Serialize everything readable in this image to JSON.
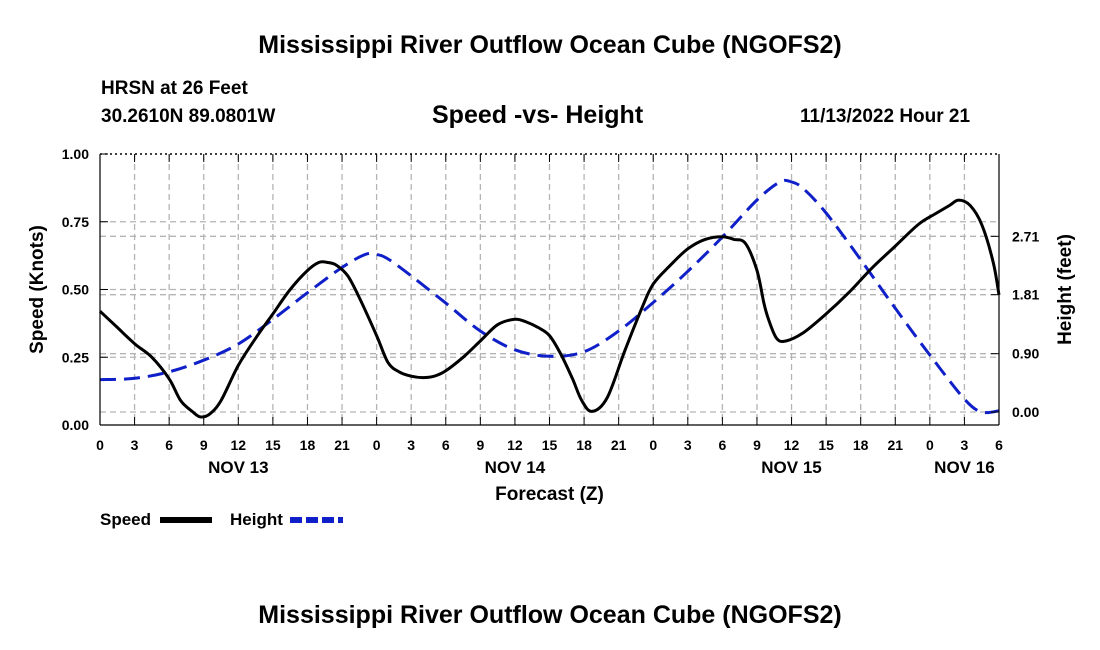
{
  "page": {
    "title_top": "Mississippi River Outflow Ocean Cube (NGOFS2)",
    "title_bottom": "Mississippi River Outflow Ocean Cube (NGOFS2)",
    "station": "HRSN at 26 Feet",
    "location": "30.2610N  89.0801W",
    "plot_title": "Speed -vs- Height",
    "date_label": "11/13/2022 Hour 21"
  },
  "chart_data": {
    "type": "line",
    "xlabel": "Forecast (Z)",
    "ylabel": "Speed (Knots)",
    "y2label": "Height (feet)",
    "xlim": [
      0,
      78
    ],
    "ylim": [
      0,
      1.0
    ],
    "y2lim": [
      -0.2,
      3.98
    ],
    "grid": true,
    "x_ticks": [
      0,
      3,
      6,
      9,
      12,
      15,
      18,
      21,
      24,
      27,
      30,
      33,
      36,
      39,
      42,
      45,
      48,
      51,
      54,
      57,
      60,
      63,
      66,
      69,
      72,
      75,
      78
    ],
    "x_tick_labels": [
      "0",
      "3",
      "6",
      "9",
      "12",
      "15",
      "18",
      "21",
      "0",
      "3",
      "6",
      "9",
      "12",
      "15",
      "18",
      "21",
      "0",
      "3",
      "6",
      "9",
      "12",
      "15",
      "18",
      "21",
      "0",
      "3",
      "6"
    ],
    "day_labels": [
      {
        "x": 12,
        "label": "NOV 13"
      },
      {
        "x": 36,
        "label": "NOV 14"
      },
      {
        "x": 60,
        "label": "NOV 15"
      },
      {
        "x": 75,
        "label": "NOV 16"
      }
    ],
    "y_ticks": [
      0.0,
      0.25,
      0.5,
      0.75,
      1.0
    ],
    "y_tick_labels": [
      "0.00",
      "0.25",
      "0.50",
      "0.75",
      "1.00"
    ],
    "y2_ticks": [
      0.0,
      0.9,
      1.81,
      2.71
    ],
    "y2_tick_labels": [
      "0.00",
      "0.90",
      "1.81",
      "2.71"
    ],
    "legend": [
      {
        "name": "Speed",
        "color": "#000000",
        "dash": "solid"
      },
      {
        "name": "Height",
        "color": "#1020c8",
        "dash": "dashed"
      }
    ],
    "series": [
      {
        "name": "Speed",
        "axis": "left",
        "color": "#000000",
        "x": [
          0,
          1.5,
          3,
          4.5,
          6,
          7,
          8,
          8.7,
          9.5,
          10.5,
          12,
          13.5,
          15,
          16.5,
          18,
          19,
          19.7,
          20.5,
          21.5,
          22.5,
          24,
          25,
          26,
          27,
          28,
          29,
          30,
          31.5,
          33,
          34.5,
          36,
          37,
          38,
          39,
          40,
          41,
          41.8,
          42.7,
          44,
          45.5,
          47,
          48,
          49.5,
          51,
          52.5,
          54,
          55,
          56,
          57,
          57.6,
          58,
          58.7,
          59.5,
          61,
          63,
          65,
          67,
          69,
          71,
          72.5,
          73.7,
          74.5,
          75.5,
          76.5,
          77.5,
          78
        ],
        "values": [
          0.42,
          0.36,
          0.3,
          0.25,
          0.17,
          0.09,
          0.05,
          0.03,
          0.04,
          0.09,
          0.22,
          0.32,
          0.41,
          0.5,
          0.57,
          0.6,
          0.6,
          0.59,
          0.55,
          0.47,
          0.33,
          0.23,
          0.195,
          0.18,
          0.175,
          0.18,
          0.2,
          0.25,
          0.31,
          0.37,
          0.39,
          0.38,
          0.36,
          0.33,
          0.26,
          0.17,
          0.09,
          0.05,
          0.1,
          0.27,
          0.43,
          0.52,
          0.59,
          0.65,
          0.685,
          0.695,
          0.685,
          0.67,
          0.57,
          0.45,
          0.39,
          0.32,
          0.31,
          0.34,
          0.41,
          0.49,
          0.58,
          0.66,
          0.74,
          0.78,
          0.81,
          0.83,
          0.81,
          0.74,
          0.6,
          0.48
        ]
      },
      {
        "name": "Height",
        "axis": "right",
        "color": "#1020c8",
        "x": [
          0,
          3,
          6,
          9,
          12,
          15,
          18,
          21,
          23,
          24,
          25,
          27,
          30,
          33,
          36,
          39,
          42,
          45,
          48,
          51,
          54,
          57,
          59,
          60,
          61,
          63,
          66,
          69,
          72,
          75,
          76.5,
          78
        ],
        "values": [
          0.5,
          0.52,
          0.62,
          0.8,
          1.05,
          1.43,
          1.84,
          2.23,
          2.43,
          2.43,
          2.36,
          2.1,
          1.68,
          1.25,
          0.96,
          0.86,
          0.93,
          1.25,
          1.69,
          2.17,
          2.7,
          3.27,
          3.55,
          3.55,
          3.45,
          3.07,
          2.35,
          1.6,
          0.88,
          0.2,
          0.0,
          0.02
        ]
      }
    ]
  }
}
